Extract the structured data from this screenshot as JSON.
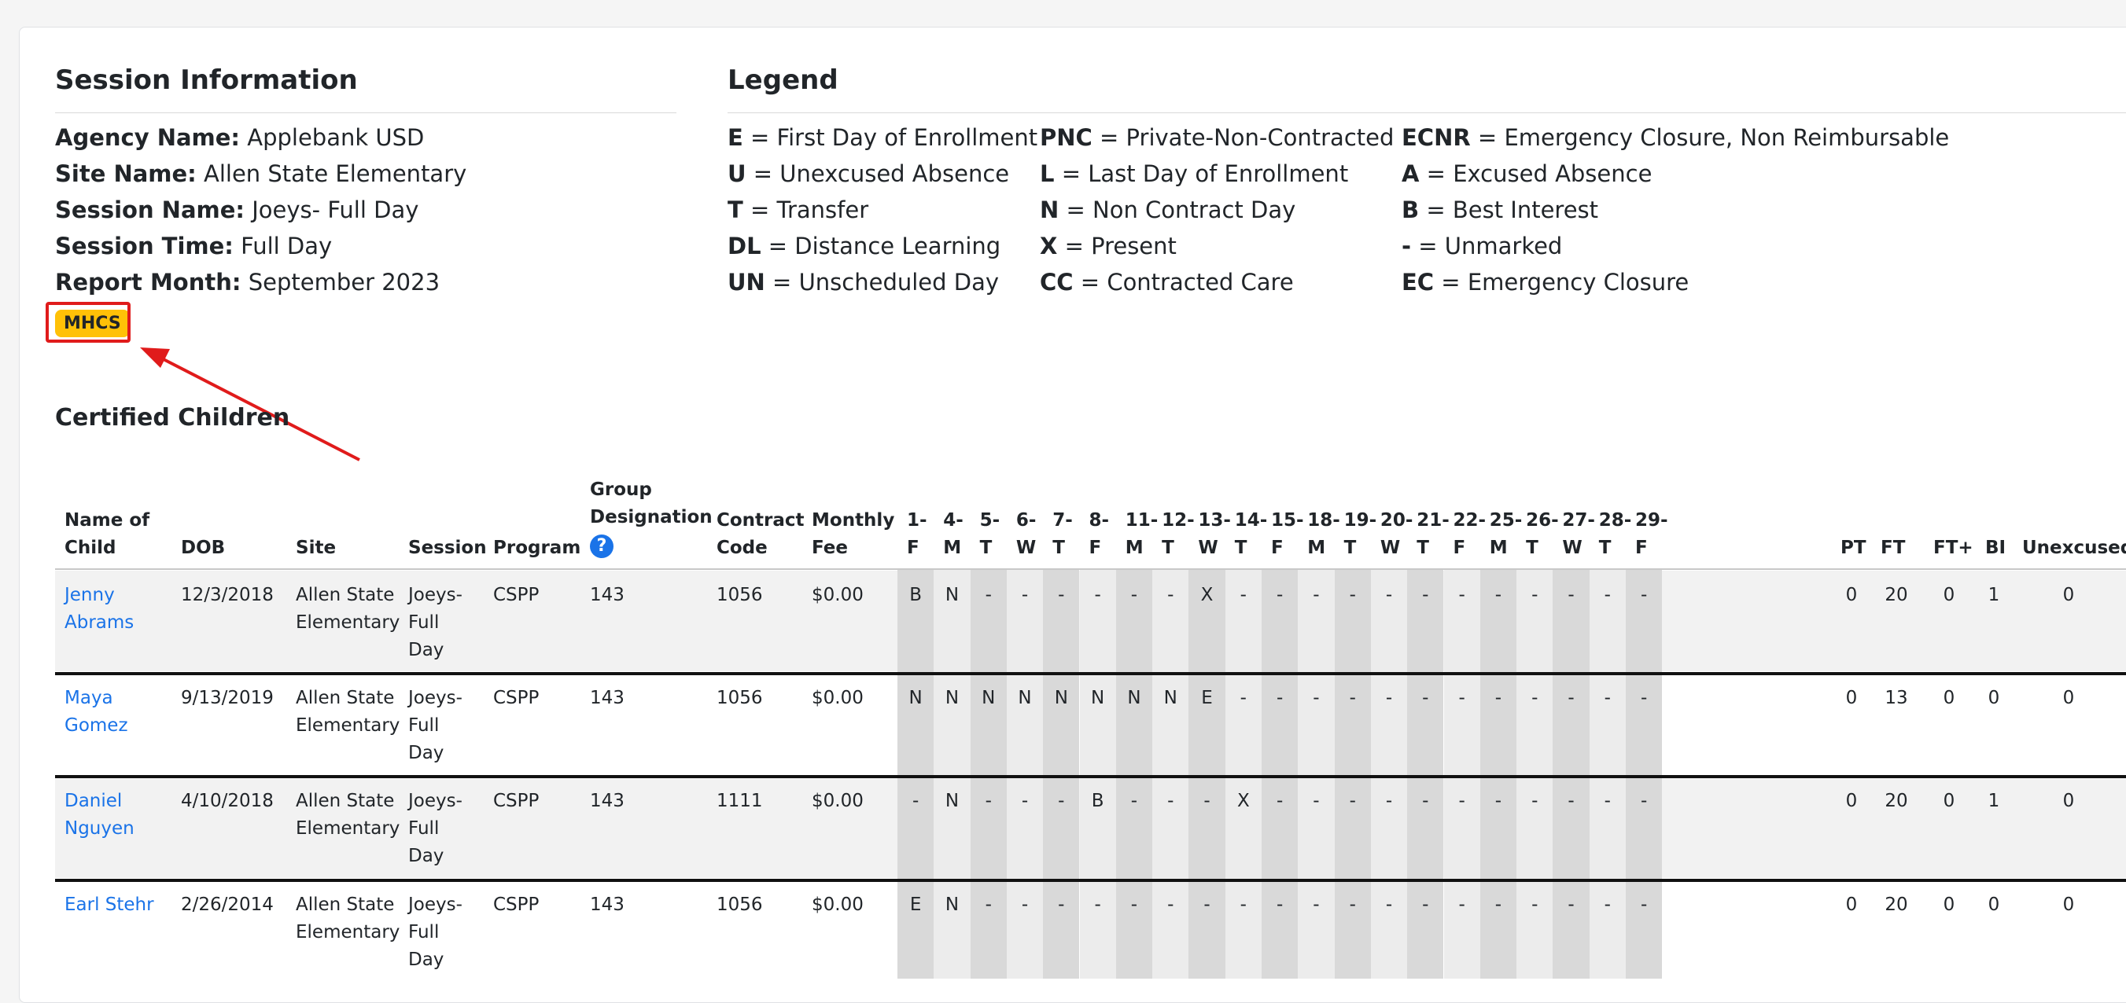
{
  "session_info": {
    "title": "Session Information",
    "agency_label": "Agency Name:",
    "agency_value": " Applebank USD",
    "site_label": "Site Name:",
    "site_value": " Allen State Elementary",
    "session_label": "Session Name:",
    "session_value": " Joeys- Full Day",
    "time_label": "Session Time:",
    "time_value": " Full Day",
    "month_label": "Report Month:",
    "month_value": " September 2023",
    "badge": "MHCS"
  },
  "legend": {
    "title": "Legend",
    "col1": [
      {
        "code": "E",
        "desc": " = First Day of Enrollment"
      },
      {
        "code": "U",
        "desc": " = Unexcused Absence"
      },
      {
        "code": "T",
        "desc": " = Transfer"
      },
      {
        "code": "DL",
        "desc": " = Distance Learning"
      },
      {
        "code": "UN",
        "desc": " = Unscheduled Day"
      }
    ],
    "col2": [
      {
        "code": "PNC",
        "desc": " = Private-Non-Contracted"
      },
      {
        "code": "L",
        "desc": " = Last Day of Enrollment"
      },
      {
        "code": "N",
        "desc": " = Non Contract Day"
      },
      {
        "code": "X",
        "desc": " = Present"
      },
      {
        "code": "CC",
        "desc": " = Contracted Care"
      }
    ],
    "col3": [
      {
        "code": "ECNR",
        "desc": " = Emergency Closure, Non Reimbursable"
      },
      {
        "code": "A",
        "desc": " = Excused Absence"
      },
      {
        "code": "B",
        "desc": " = Best Interest"
      },
      {
        "code": "-",
        "desc": " = Unmarked"
      },
      {
        "code": "EC",
        "desc": " = Emergency Closure"
      }
    ]
  },
  "certified": {
    "title": "Certified Children",
    "headers": {
      "name": [
        "Name of",
        "Child"
      ],
      "dob": "DOB",
      "site": "Site",
      "session": "Session",
      "program": "Program",
      "group": [
        "Group",
        "Designation"
      ],
      "contract": [
        "Contract",
        "Code"
      ],
      "fee": [
        "Monthly",
        "Fee"
      ],
      "pt": "PT",
      "ft": "FT",
      "ftplus": "FT+",
      "bi": "BI",
      "unexcused": "Unexcused"
    },
    "help_icon": "question-circle-icon",
    "days": [
      {
        "num": "1-",
        "dow": "F"
      },
      {
        "num": "4-",
        "dow": "M"
      },
      {
        "num": "5-",
        "dow": "T"
      },
      {
        "num": "6-",
        "dow": "W"
      },
      {
        "num": "7-",
        "dow": "T"
      },
      {
        "num": "8-",
        "dow": "F"
      },
      {
        "num": "11-",
        "dow": "M"
      },
      {
        "num": "12-",
        "dow": "T"
      },
      {
        "num": "13-",
        "dow": "W"
      },
      {
        "num": "14-",
        "dow": "T"
      },
      {
        "num": "15-",
        "dow": "F"
      },
      {
        "num": "18-",
        "dow": "M"
      },
      {
        "num": "19-",
        "dow": "T"
      },
      {
        "num": "20-",
        "dow": "W"
      },
      {
        "num": "21-",
        "dow": "T"
      },
      {
        "num": "22-",
        "dow": "F"
      },
      {
        "num": "25-",
        "dow": "M"
      },
      {
        "num": "26-",
        "dow": "T"
      },
      {
        "num": "27-",
        "dow": "W"
      },
      {
        "num": "28-",
        "dow": "T"
      },
      {
        "num": "29-",
        "dow": "F"
      }
    ],
    "rows": [
      {
        "name": [
          "Jenny",
          "Abrams"
        ],
        "dob": "12/3/2018",
        "site": [
          "Allen State",
          "Elementary"
        ],
        "session": [
          "Joeys-",
          "Full",
          "Day"
        ],
        "program": "CSPP",
        "group": "143",
        "contract": "1056",
        "fee": "$0.00",
        "marks": [
          "B",
          "N",
          "-",
          "-",
          "-",
          "-",
          "-",
          "-",
          "X",
          "-",
          "-",
          "-",
          "-",
          "-",
          "-",
          "-",
          "-",
          "-",
          "-",
          "-",
          "-"
        ],
        "pt": "0",
        "ft": "20",
        "ftplus": "0",
        "bi": "1",
        "unexcused": "0"
      },
      {
        "name": [
          "Maya",
          "Gomez"
        ],
        "dob": "9/13/2019",
        "site": [
          "Allen State",
          "Elementary"
        ],
        "session": [
          "Joeys-",
          "Full",
          "Day"
        ],
        "program": "CSPP",
        "group": "143",
        "contract": "1056",
        "fee": "$0.00",
        "marks": [
          "N",
          "N",
          "N",
          "N",
          "N",
          "N",
          "N",
          "N",
          "E",
          "-",
          "-",
          "-",
          "-",
          "-",
          "-",
          "-",
          "-",
          "-",
          "-",
          "-",
          "-"
        ],
        "pt": "0",
        "ft": "13",
        "ftplus": "0",
        "bi": "0",
        "unexcused": "0"
      },
      {
        "name": [
          "Daniel",
          "Nguyen"
        ],
        "dob": "4/10/2018",
        "site": [
          "Allen State",
          "Elementary"
        ],
        "session": [
          "Joeys-",
          "Full",
          "Day"
        ],
        "program": "CSPP",
        "group": "143",
        "contract": "1111",
        "fee": "$0.00",
        "marks": [
          "-",
          "N",
          "-",
          "-",
          "-",
          "B",
          "-",
          "-",
          "-",
          "X",
          "-",
          "-",
          "-",
          "-",
          "-",
          "-",
          "-",
          "-",
          "-",
          "-",
          "-"
        ],
        "pt": "0",
        "ft": "20",
        "ftplus": "0",
        "bi": "1",
        "unexcused": "0"
      },
      {
        "name": [
          "Earl Stehr"
        ],
        "dob": "2/26/2014",
        "site": [
          "Allen State",
          "Elementary"
        ],
        "session": [
          "Joeys-",
          "Full",
          "Day"
        ],
        "program": "CSPP",
        "group": "143",
        "contract": "1056",
        "fee": "$0.00",
        "marks": [
          "E",
          "N",
          "-",
          "-",
          "-",
          "-",
          "-",
          "-",
          "-",
          "-",
          "-",
          "-",
          "-",
          "-",
          "-",
          "-",
          "-",
          "-",
          "-",
          "-",
          "-"
        ],
        "pt": "0",
        "ft": "20",
        "ftplus": "0",
        "bi": "0",
        "unexcused": "0"
      }
    ]
  },
  "colors": {
    "link": "#1a73e8",
    "badge": "#ffc107",
    "annotation": "#e01b1b",
    "day_odd": "#d9d9d9",
    "day_even": "#ececec"
  }
}
